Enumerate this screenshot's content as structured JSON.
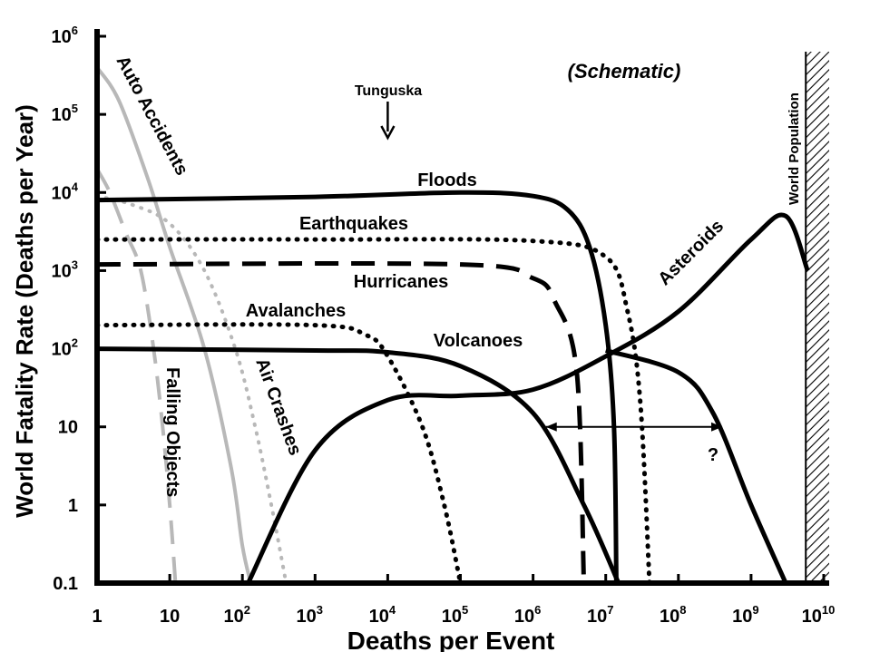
{
  "chart_data": {
    "type": "line",
    "title": "",
    "note": "(Schematic)",
    "xlabel": "Deaths per Event",
    "ylabel": "World Fatality Rate (Deaths per Year)",
    "xscale": "log",
    "yscale": "log",
    "xlim": [
      1,
      10000000000
    ],
    "ylim": [
      0.1,
      1000000
    ],
    "x_ticks": [
      {
        "value": 1,
        "label": "1"
      },
      {
        "value": 10,
        "label": "10"
      },
      {
        "value": 100,
        "label": "10",
        "sup": "2"
      },
      {
        "value": 1000,
        "label": "10",
        "sup": "3"
      },
      {
        "value": 10000,
        "label": "10",
        "sup": "4"
      },
      {
        "value": 100000,
        "label": "10",
        "sup": "5"
      },
      {
        "value": 1000000,
        "label": "10",
        "sup": "6"
      },
      {
        "value": 10000000,
        "label": "10",
        "sup": "7"
      },
      {
        "value": 100000000,
        "label": "10",
        "sup": "8"
      },
      {
        "value": 1000000000,
        "label": "10",
        "sup": "9"
      },
      {
        "value": 10000000000,
        "label": "10",
        "sup": "10"
      }
    ],
    "y_ticks": [
      {
        "value": 0.1,
        "label": "0.1"
      },
      {
        "value": 1,
        "label": "1"
      },
      {
        "value": 10,
        "label": "10"
      },
      {
        "value": 100,
        "label": "10",
        "sup": "2"
      },
      {
        "value": 1000,
        "label": "10",
        "sup": "3"
      },
      {
        "value": 10000,
        "label": "10",
        "sup": "4"
      },
      {
        "value": 100000,
        "label": "10",
        "sup": "5"
      },
      {
        "value": 1000000,
        "label": "10",
        "sup": "6"
      }
    ],
    "series": [
      {
        "name": "Auto Accidents",
        "color": "#b8b8b8",
        "style": "solid",
        "points": [
          [
            1,
            400000
          ],
          [
            2,
            150000
          ],
          [
            5,
            15000
          ],
          [
            10,
            2000
          ],
          [
            30,
            100
          ],
          [
            70,
            3
          ],
          [
            100,
            0.3
          ],
          [
            130,
            0.1
          ]
        ]
      },
      {
        "name": "Falling Objects",
        "color": "#b8b8b8",
        "style": "dashed",
        "points": [
          [
            1,
            20000
          ],
          [
            1.5,
            10000
          ],
          [
            2.5,
            3000
          ],
          [
            4,
            1000
          ],
          [
            6,
            100
          ],
          [
            8,
            10
          ],
          [
            10,
            1
          ],
          [
            12,
            0.1
          ]
        ]
      },
      {
        "name": "Air Crashes",
        "color": "#b8b8b8",
        "style": "dotted",
        "points": [
          [
            1,
            9000
          ],
          [
            3,
            7000
          ],
          [
            10,
            4000
          ],
          [
            30,
            1000
          ],
          [
            80,
            100
          ],
          [
            150,
            10
          ],
          [
            250,
            1
          ],
          [
            400,
            0.1
          ]
        ]
      },
      {
        "name": "Floods",
        "color": "#000000",
        "style": "solid",
        "points": [
          [
            1,
            8000
          ],
          [
            1000,
            8800
          ],
          [
            100000,
            10000
          ],
          [
            1000000,
            9000
          ],
          [
            3000000,
            6000
          ],
          [
            6000000,
            2000
          ],
          [
            10000000,
            200
          ],
          [
            13000000,
            10
          ],
          [
            14000000,
            0.1
          ]
        ]
      },
      {
        "name": "Earthquakes",
        "color": "#000000",
        "style": "dotted",
        "points": [
          [
            1,
            2500
          ],
          [
            1000,
            2500
          ],
          [
            1000000,
            2400
          ],
          [
            10000000,
            1500
          ],
          [
            20000000,
            300
          ],
          [
            30000000,
            20
          ],
          [
            40000000,
            0.1
          ]
        ]
      },
      {
        "name": "Hurricanes",
        "color": "#000000",
        "style": "dashed",
        "points": [
          [
            1,
            1200
          ],
          [
            100000,
            1200
          ],
          [
            1000000,
            800
          ],
          [
            2000000,
            400
          ],
          [
            4000000,
            50
          ],
          [
            5000000,
            0.1
          ]
        ]
      },
      {
        "name": "Avalanches",
        "color": "#000000",
        "style": "dotted",
        "points": [
          [
            1,
            200
          ],
          [
            1000,
            200
          ],
          [
            5000,
            150
          ],
          [
            10000,
            80
          ],
          [
            30000,
            10
          ],
          [
            60000,
            1
          ],
          [
            100000,
            0.1
          ]
        ]
      },
      {
        "name": "Volcanoes",
        "color": "#000000",
        "style": "solid",
        "points": [
          [
            1,
            100
          ],
          [
            1000,
            95
          ],
          [
            10000,
            90
          ],
          [
            100000,
            60
          ],
          [
            1000000,
            15
          ],
          [
            5000000,
            1
          ],
          [
            15000000,
            0.1
          ]
        ]
      },
      {
        "name": "Asteroids",
        "color": "#000000",
        "style": "solid",
        "points": [
          [
            120,
            0.1
          ],
          [
            1000,
            5
          ],
          [
            10000,
            22
          ],
          [
            100000,
            25
          ],
          [
            1000000,
            30
          ],
          [
            10000000,
            80
          ],
          [
            100000000,
            300
          ],
          [
            1000000000,
            2500
          ],
          [
            3000000000,
            5000
          ],
          [
            6000000000,
            1000
          ]
        ]
      },
      {
        "name": "Asteroids (lower)",
        "color": "#000000",
        "style": "solid",
        "points": [
          [
            10000000,
            95
          ],
          [
            100000000,
            50
          ],
          [
            300000000,
            15
          ],
          [
            1000000000,
            1
          ],
          [
            3000000000,
            0.1
          ]
        ]
      }
    ],
    "annotations": [
      {
        "text": "Tunguska",
        "arrow": "down",
        "x": 10000
      },
      {
        "text": "World Population",
        "x": 6000000000
      },
      {
        "text": "?",
        "x": 400000000,
        "y": 6
      }
    ],
    "range_arrow": {
      "from": 1500000,
      "to": 400000000,
      "y": 10
    }
  }
}
